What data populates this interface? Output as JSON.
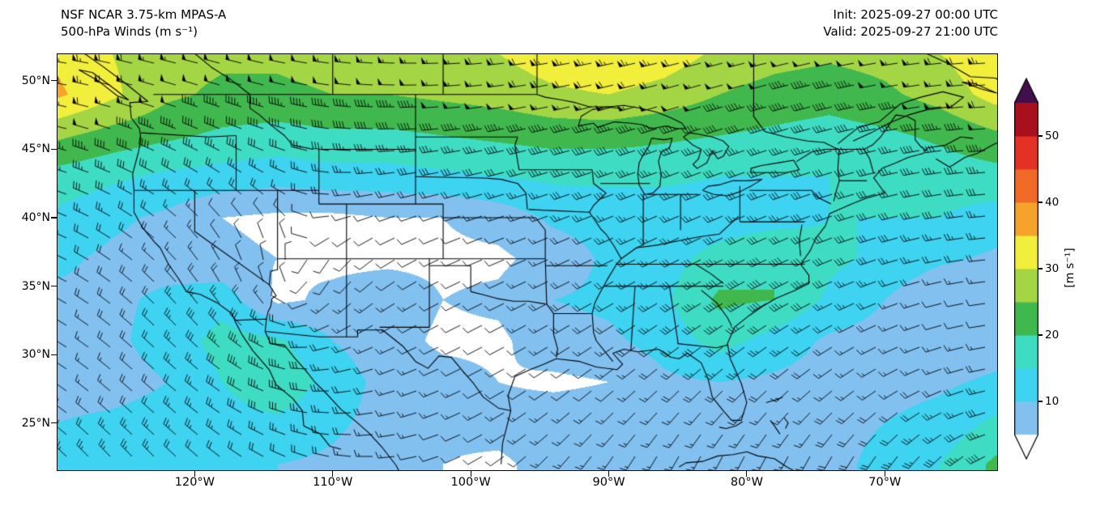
{
  "header": {
    "title_line1": "NSF NCAR 3.75-km MPAS-A",
    "title_line2": "500-hPa Winds (m s⁻¹)",
    "init_label": "Init: 2025-09-27 00:00 UTC",
    "valid_label": "Valid: 2025-09-27 21:00 UTC"
  },
  "chart_data": {
    "type": "heatmap",
    "title": "NSF NCAR 3.75-km MPAS-A",
    "subtitle": "500-hPa Winds (m s⁻¹)",
    "init_time": "2025-09-27 00:00 UTC",
    "valid_time": "2025-09-27 21:00 UTC",
    "field": "500-hPa wind speed with wind barbs over North America",
    "units": "m s⁻¹",
    "lon_range": [
      -130.0,
      -61.8
    ],
    "lat_range": [
      21.5,
      52.0
    ],
    "x_axis": {
      "ticks": [
        {
          "value": -120,
          "label": "120°W"
        },
        {
          "value": -110,
          "label": "110°W"
        },
        {
          "value": -100,
          "label": "100°W"
        },
        {
          "value": -90,
          "label": "90°W"
        },
        {
          "value": -80,
          "label": "80°W"
        },
        {
          "value": -70,
          "label": "70°W"
        }
      ]
    },
    "y_axis": {
      "ticks": [
        {
          "value": 50,
          "label": "50°N"
        },
        {
          "value": 45,
          "label": "45°N"
        },
        {
          "value": 40,
          "label": "40°N"
        },
        {
          "value": 35,
          "label": "35°N"
        },
        {
          "value": 30,
          "label": "30°N"
        },
        {
          "value": 25,
          "label": "25°N"
        }
      ]
    },
    "grid": {
      "lons_start": -130,
      "lons_step": 4,
      "lats_start": 52,
      "lats_step": -3,
      "speeds": [
        [
          34,
          30,
          27,
          26,
          26,
          27,
          28,
          28,
          30,
          33,
          35,
          33,
          29,
          27,
          26,
          27,
          30,
          34
        ],
        [
          36,
          31,
          26,
          24,
          24,
          25,
          25,
          26,
          27,
          29,
          30,
          28,
          25,
          23,
          22,
          24,
          27,
          32
        ],
        [
          26,
          23,
          21,
          19,
          18,
          19,
          19,
          20,
          21,
          22,
          22,
          21,
          20,
          19,
          18,
          19,
          21,
          24
        ],
        [
          18,
          16,
          14,
          13,
          12,
          13,
          13,
          14,
          15,
          16,
          16,
          16,
          15,
          15,
          15,
          16,
          17,
          18
        ],
        [
          14,
          11,
          9,
          5,
          4,
          4,
          5,
          5,
          7,
          11,
          12,
          12,
          12,
          13,
          15,
          15,
          15,
          13
        ],
        [
          11,
          9,
          8,
          6,
          5,
          4,
          4,
          4,
          4,
          7,
          11,
          13,
          17,
          20,
          16,
          14,
          11,
          9
        ],
        [
          9,
          9,
          11,
          13,
          4,
          6,
          8,
          5,
          6,
          10,
          11,
          14,
          21,
          20,
          14,
          10,
          5,
          5
        ],
        [
          8,
          9,
          12,
          17,
          16,
          10,
          7,
          4,
          4,
          8,
          9,
          12,
          17,
          13,
          9,
          8,
          6,
          7
        ],
        [
          8,
          8,
          10,
          15,
          19,
          13,
          8,
          7,
          5,
          4,
          5,
          9,
          10,
          9,
          8,
          8,
          9,
          11
        ],
        [
          10,
          11,
          12,
          13,
          14,
          11,
          8,
          6,
          7,
          8,
          8,
          8,
          8,
          8,
          9,
          10,
          12,
          16
        ],
        [
          12,
          12,
          11,
          10,
          10,
          9,
          7,
          5,
          4,
          7,
          8,
          8,
          8,
          8,
          9,
          11,
          15,
          21
        ]
      ]
    },
    "colorbar": {
      "label": "[m s⁻¹]",
      "tick_values": [
        50,
        40,
        30,
        20,
        10
      ],
      "range": [
        5,
        55
      ],
      "band_size": 5,
      "band_colors": [
        "#82c0f0",
        "#3ed3f0",
        "#3fdcc4",
        "#41b84e",
        "#a4d545",
        "#f1ee3c",
        "#f6a32c",
        "#f06a27",
        "#e33225",
        "#a8101e"
      ],
      "under_color": "#ffffff",
      "over_color": "#40104c"
    },
    "flow": {
      "low_center": {
        "lat": 34,
        "lon": -113
      },
      "vortex_strength": 130,
      "barb_half": 2.5,
      "barb_full": 5,
      "barb_pennant": 25
    }
  }
}
